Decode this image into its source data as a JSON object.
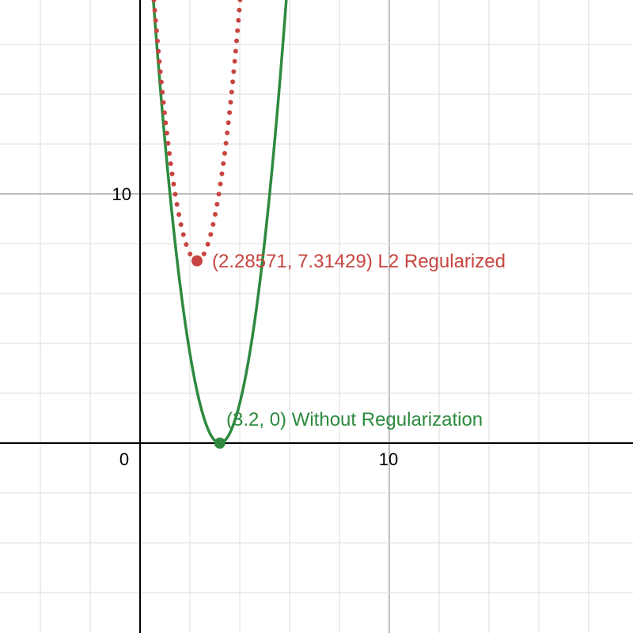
{
  "chart_data": {
    "type": "line",
    "xlim": [
      -5.62,
      19.78
    ],
    "ylim": [
      -7.62,
      17.78
    ],
    "grid": true,
    "minor_grid_step": 2,
    "major_grid_step": 10,
    "x_tick_labels": [
      "0",
      "10"
    ],
    "y_tick_labels": [
      "10"
    ],
    "series": [
      {
        "expression": "2.5(x-3.2)^2",
        "style": "solid",
        "color": "#2d8a3e"
      },
      {
        "expression": "2.5(x-3.2)^2 + x^2",
        "style": "dotted",
        "color": "#c74440"
      }
    ],
    "points": [
      {
        "x": 2.28571,
        "y": 7.31429,
        "label": "(2.28571, 7.31429) L2 Regularized",
        "color": "#c74440"
      },
      {
        "x": 3.2,
        "y": 0,
        "label": "(3.2, 0) Without Regularization",
        "color": "#2d8a3e"
      }
    ]
  }
}
